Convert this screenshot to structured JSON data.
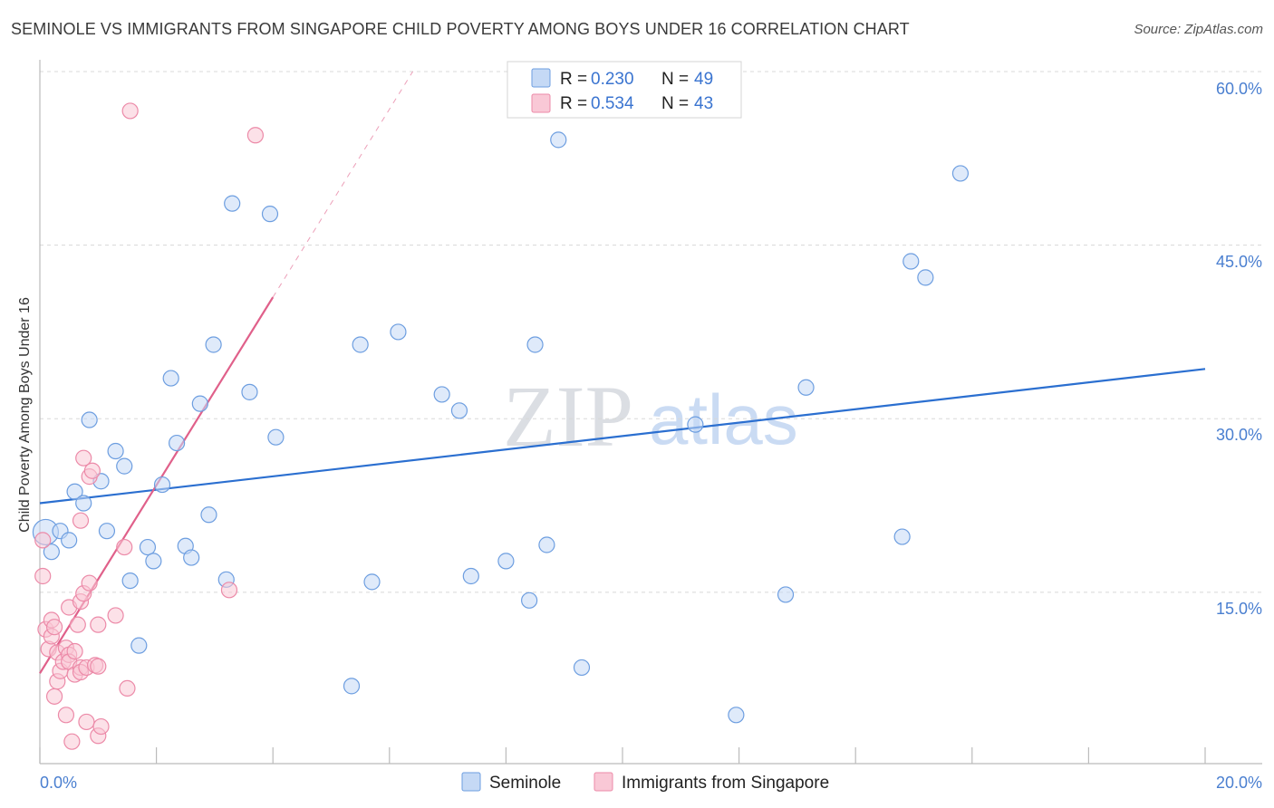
{
  "header": {
    "title": "SEMINOLE VS IMMIGRANTS FROM SINGAPORE CHILD POVERTY AMONG BOYS UNDER 16 CORRELATION CHART",
    "source": "Source: ZipAtlas.com"
  },
  "watermark": {
    "zip": "ZIP",
    "atlas": "atlas"
  },
  "colors": {
    "blue_fill": "#c5d9f5",
    "blue_stroke": "#6d9ee0",
    "blue_line": "#2b6fd0",
    "pink_fill": "#f9c8d6",
    "pink_stroke": "#ec8aa8",
    "pink_line": "#e0608a",
    "grid": "#d8d8d8",
    "tick_text": "#4a7fd0"
  },
  "legend": {
    "entries": [
      {
        "r_label": "R = ",
        "r_value": "0.230",
        "n_label": "N = ",
        "n_value": "49"
      },
      {
        "r_label": "R = ",
        "r_value": "0.534",
        "n_label": "N = ",
        "n_value": "43"
      }
    ]
  },
  "bottom_legend": [
    "Seminole",
    "Immigrants from Singapore"
  ],
  "chart_data": {
    "type": "scatter",
    "title": "SEMINOLE VS IMMIGRANTS FROM SINGAPORE CHILD POVERTY AMONG BOYS UNDER 16 CORRELATION CHART",
    "xlabel": "",
    "ylabel": "Child Poverty Among Boys Under 16",
    "xlim": [
      0,
      20
    ],
    "ylim": [
      0,
      60
    ],
    "x_tick_labels": [
      "0.0%",
      "20.0%"
    ],
    "y_ticks": [
      15,
      30,
      45,
      60
    ],
    "y_tick_labels": [
      "15.0%",
      "30.0%",
      "45.0%",
      "60.0%"
    ],
    "series": [
      {
        "name": "Seminole",
        "color": "blue",
        "R": 0.23,
        "N": 49,
        "trend": {
          "x": [
            0,
            20
          ],
          "y": [
            22.7,
            34.3
          ],
          "dash_from": null
        },
        "points": [
          {
            "x": 0.1,
            "y": 20.2,
            "s": "l"
          },
          {
            "x": 0.2,
            "y": 18.5,
            "s": "n"
          },
          {
            "x": 0.35,
            "y": 20.3,
            "s": "n"
          },
          {
            "x": 0.5,
            "y": 19.5,
            "s": "n"
          },
          {
            "x": 0.6,
            "y": 23.7,
            "s": "n"
          },
          {
            "x": 0.75,
            "y": 22.7,
            "s": "n"
          },
          {
            "x": 0.85,
            "y": 29.9,
            "s": "n"
          },
          {
            "x": 1.05,
            "y": 24.6,
            "s": "n"
          },
          {
            "x": 1.15,
            "y": 20.3,
            "s": "n"
          },
          {
            "x": 1.3,
            "y": 27.2,
            "s": "n"
          },
          {
            "x": 1.45,
            "y": 25.9,
            "s": "n"
          },
          {
            "x": 1.55,
            "y": 16.0,
            "s": "n"
          },
          {
            "x": 1.7,
            "y": 10.4,
            "s": "n"
          },
          {
            "x": 1.85,
            "y": 18.9,
            "s": "n"
          },
          {
            "x": 1.95,
            "y": 17.7,
            "s": "n"
          },
          {
            "x": 2.1,
            "y": 24.3,
            "s": "n"
          },
          {
            "x": 2.25,
            "y": 33.5,
            "s": "n"
          },
          {
            "x": 2.35,
            "y": 27.9,
            "s": "n"
          },
          {
            "x": 2.5,
            "y": 19.0,
            "s": "n"
          },
          {
            "x": 2.6,
            "y": 18.0,
            "s": "n"
          },
          {
            "x": 2.75,
            "y": 31.3,
            "s": "n"
          },
          {
            "x": 2.9,
            "y": 21.7,
            "s": "n"
          },
          {
            "x": 2.98,
            "y": 36.4,
            "s": "n"
          },
          {
            "x": 3.2,
            "y": 16.1,
            "s": "n"
          },
          {
            "x": 3.3,
            "y": 48.6,
            "s": "n"
          },
          {
            "x": 3.6,
            "y": 32.3,
            "s": "n"
          },
          {
            "x": 3.95,
            "y": 47.7,
            "s": "n"
          },
          {
            "x": 4.05,
            "y": 28.4,
            "s": "n"
          },
          {
            "x": 5.5,
            "y": 36.4,
            "s": "n"
          },
          {
            "x": 5.35,
            "y": 6.9,
            "s": "n"
          },
          {
            "x": 5.7,
            "y": 15.9,
            "s": "n"
          },
          {
            "x": 6.15,
            "y": 37.5,
            "s": "n"
          },
          {
            "x": 6.9,
            "y": 32.1,
            "s": "n"
          },
          {
            "x": 7.2,
            "y": 30.7,
            "s": "n"
          },
          {
            "x": 7.4,
            "y": 16.4,
            "s": "n"
          },
          {
            "x": 8.0,
            "y": 17.7,
            "s": "n"
          },
          {
            "x": 8.4,
            "y": 14.3,
            "s": "n"
          },
          {
            "x": 8.5,
            "y": 36.4,
            "s": "n"
          },
          {
            "x": 8.7,
            "y": 19.1,
            "s": "n"
          },
          {
            "x": 8.9,
            "y": 54.1,
            "s": "n"
          },
          {
            "x": 9.3,
            "y": 8.5,
            "s": "n"
          },
          {
            "x": 11.25,
            "y": 29.5,
            "s": "n"
          },
          {
            "x": 11.95,
            "y": 4.4,
            "s": "n"
          },
          {
            "x": 12.8,
            "y": 14.8,
            "s": "n"
          },
          {
            "x": 13.15,
            "y": 32.7,
            "s": "n"
          },
          {
            "x": 14.8,
            "y": 19.8,
            "s": "n"
          },
          {
            "x": 14.95,
            "y": 43.6,
            "s": "n"
          },
          {
            "x": 15.2,
            "y": 42.2,
            "s": "n"
          },
          {
            "x": 15.8,
            "y": 51.2,
            "s": "n"
          }
        ]
      },
      {
        "name": "Immigrants from Singapore",
        "color": "pink",
        "R": 0.534,
        "N": 43,
        "trend": {
          "x": [
            0,
            6.4
          ],
          "y": [
            8.0,
            60.0
          ],
          "dash_from": 4.0
        },
        "points": [
          {
            "x": 0.05,
            "y": 19.5,
            "s": "n"
          },
          {
            "x": 0.05,
            "y": 16.4,
            "s": "n"
          },
          {
            "x": 0.1,
            "y": 11.8,
            "s": "n"
          },
          {
            "x": 0.15,
            "y": 10.1,
            "s": "n"
          },
          {
            "x": 0.2,
            "y": 11.2,
            "s": "n"
          },
          {
            "x": 0.2,
            "y": 12.6,
            "s": "n"
          },
          {
            "x": 0.25,
            "y": 6.0,
            "s": "n"
          },
          {
            "x": 0.25,
            "y": 12.0,
            "s": "n"
          },
          {
            "x": 0.3,
            "y": 9.8,
            "s": "n"
          },
          {
            "x": 0.3,
            "y": 7.3,
            "s": "n"
          },
          {
            "x": 0.35,
            "y": 8.2,
            "s": "n"
          },
          {
            "x": 0.4,
            "y": 9.0,
            "s": "n"
          },
          {
            "x": 0.45,
            "y": 10.2,
            "s": "n"
          },
          {
            "x": 0.45,
            "y": 4.4,
            "s": "n"
          },
          {
            "x": 0.5,
            "y": 9.6,
            "s": "n"
          },
          {
            "x": 0.5,
            "y": 13.7,
            "s": "n"
          },
          {
            "x": 0.5,
            "y": 9.0,
            "s": "n"
          },
          {
            "x": 0.55,
            "y": 2.1,
            "s": "n"
          },
          {
            "x": 0.6,
            "y": 9.9,
            "s": "n"
          },
          {
            "x": 0.6,
            "y": 7.9,
            "s": "n"
          },
          {
            "x": 0.65,
            "y": 12.2,
            "s": "n"
          },
          {
            "x": 0.7,
            "y": 14.2,
            "s": "n"
          },
          {
            "x": 0.7,
            "y": 21.2,
            "s": "n"
          },
          {
            "x": 0.7,
            "y": 8.5,
            "s": "n"
          },
          {
            "x": 0.7,
            "y": 8.1,
            "s": "n"
          },
          {
            "x": 0.75,
            "y": 14.9,
            "s": "n"
          },
          {
            "x": 0.75,
            "y": 26.6,
            "s": "n"
          },
          {
            "x": 0.8,
            "y": 3.8,
            "s": "n"
          },
          {
            "x": 0.8,
            "y": 8.5,
            "s": "n"
          },
          {
            "x": 0.85,
            "y": 25.0,
            "s": "n"
          },
          {
            "x": 0.85,
            "y": 15.8,
            "s": "n"
          },
          {
            "x": 0.9,
            "y": 25.5,
            "s": "n"
          },
          {
            "x": 0.95,
            "y": 8.7,
            "s": "n"
          },
          {
            "x": 1.0,
            "y": 12.2,
            "s": "n"
          },
          {
            "x": 1.0,
            "y": 8.6,
            "s": "n"
          },
          {
            "x": 1.0,
            "y": 2.6,
            "s": "n"
          },
          {
            "x": 1.05,
            "y": 3.4,
            "s": "n"
          },
          {
            "x": 1.3,
            "y": 13.0,
            "s": "n"
          },
          {
            "x": 1.45,
            "y": 18.9,
            "s": "n"
          },
          {
            "x": 1.5,
            "y": 6.7,
            "s": "n"
          },
          {
            "x": 1.55,
            "y": 56.6,
            "s": "n"
          },
          {
            "x": 3.25,
            "y": 15.2,
            "s": "n"
          },
          {
            "x": 3.7,
            "y": 54.5,
            "s": "n"
          }
        ]
      }
    ]
  }
}
